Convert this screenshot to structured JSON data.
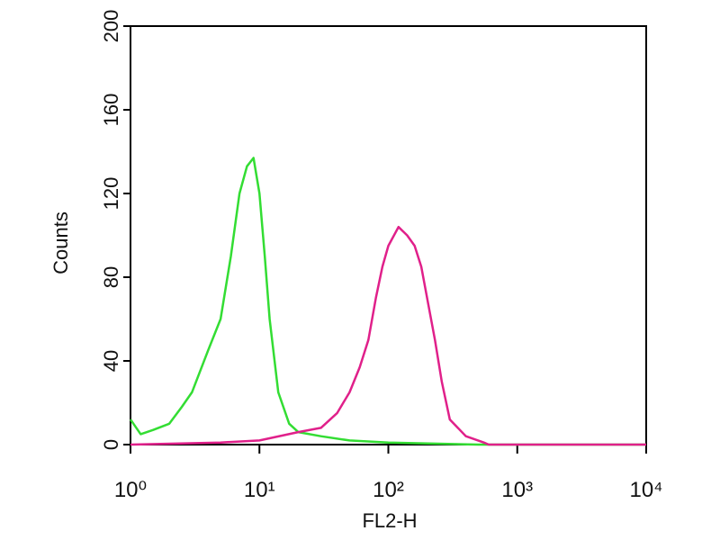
{
  "chart_data": {
    "type": "histogram-line",
    "x_label": "FL2-H",
    "y_label": "Counts",
    "xscale": "log",
    "xlim": [
      1,
      10000
    ],
    "xticks": [
      {
        "value": 1,
        "label": "10⁰"
      },
      {
        "value": 10,
        "label": "10¹"
      },
      {
        "value": 100,
        "label": "10²"
      },
      {
        "value": 1000,
        "label": "10³"
      },
      {
        "value": 10000,
        "label": "10⁴"
      }
    ],
    "ylim": [
      0,
      200
    ],
    "yticks": [
      0,
      40,
      80,
      120,
      160,
      200
    ],
    "series": [
      {
        "color": "#33dd33",
        "x": [
          1,
          1.2,
          1.5,
          2,
          2.5,
          3,
          4,
          5,
          6,
          7,
          8,
          9,
          10,
          11,
          12,
          14,
          17,
          20,
          30,
          50,
          100,
          500,
          10000
        ],
        "values": [
          12,
          5,
          7,
          10,
          18,
          25,
          45,
          60,
          90,
          120,
          133,
          137,
          120,
          90,
          60,
          25,
          10,
          6,
          4,
          2,
          1,
          0,
          0
        ]
      },
      {
        "color": "#e0208a",
        "x": [
          1,
          5,
          10,
          20,
          30,
          40,
          50,
          60,
          70,
          80,
          90,
          100,
          120,
          140,
          160,
          180,
          200,
          230,
          260,
          300,
          400,
          550,
          600,
          10000
        ],
        "values": [
          0,
          1,
          2,
          6,
          8,
          15,
          25,
          37,
          50,
          70,
          85,
          95,
          104,
          100,
          95,
          85,
          70,
          50,
          30,
          12,
          4,
          1,
          0,
          0
        ]
      }
    ]
  }
}
